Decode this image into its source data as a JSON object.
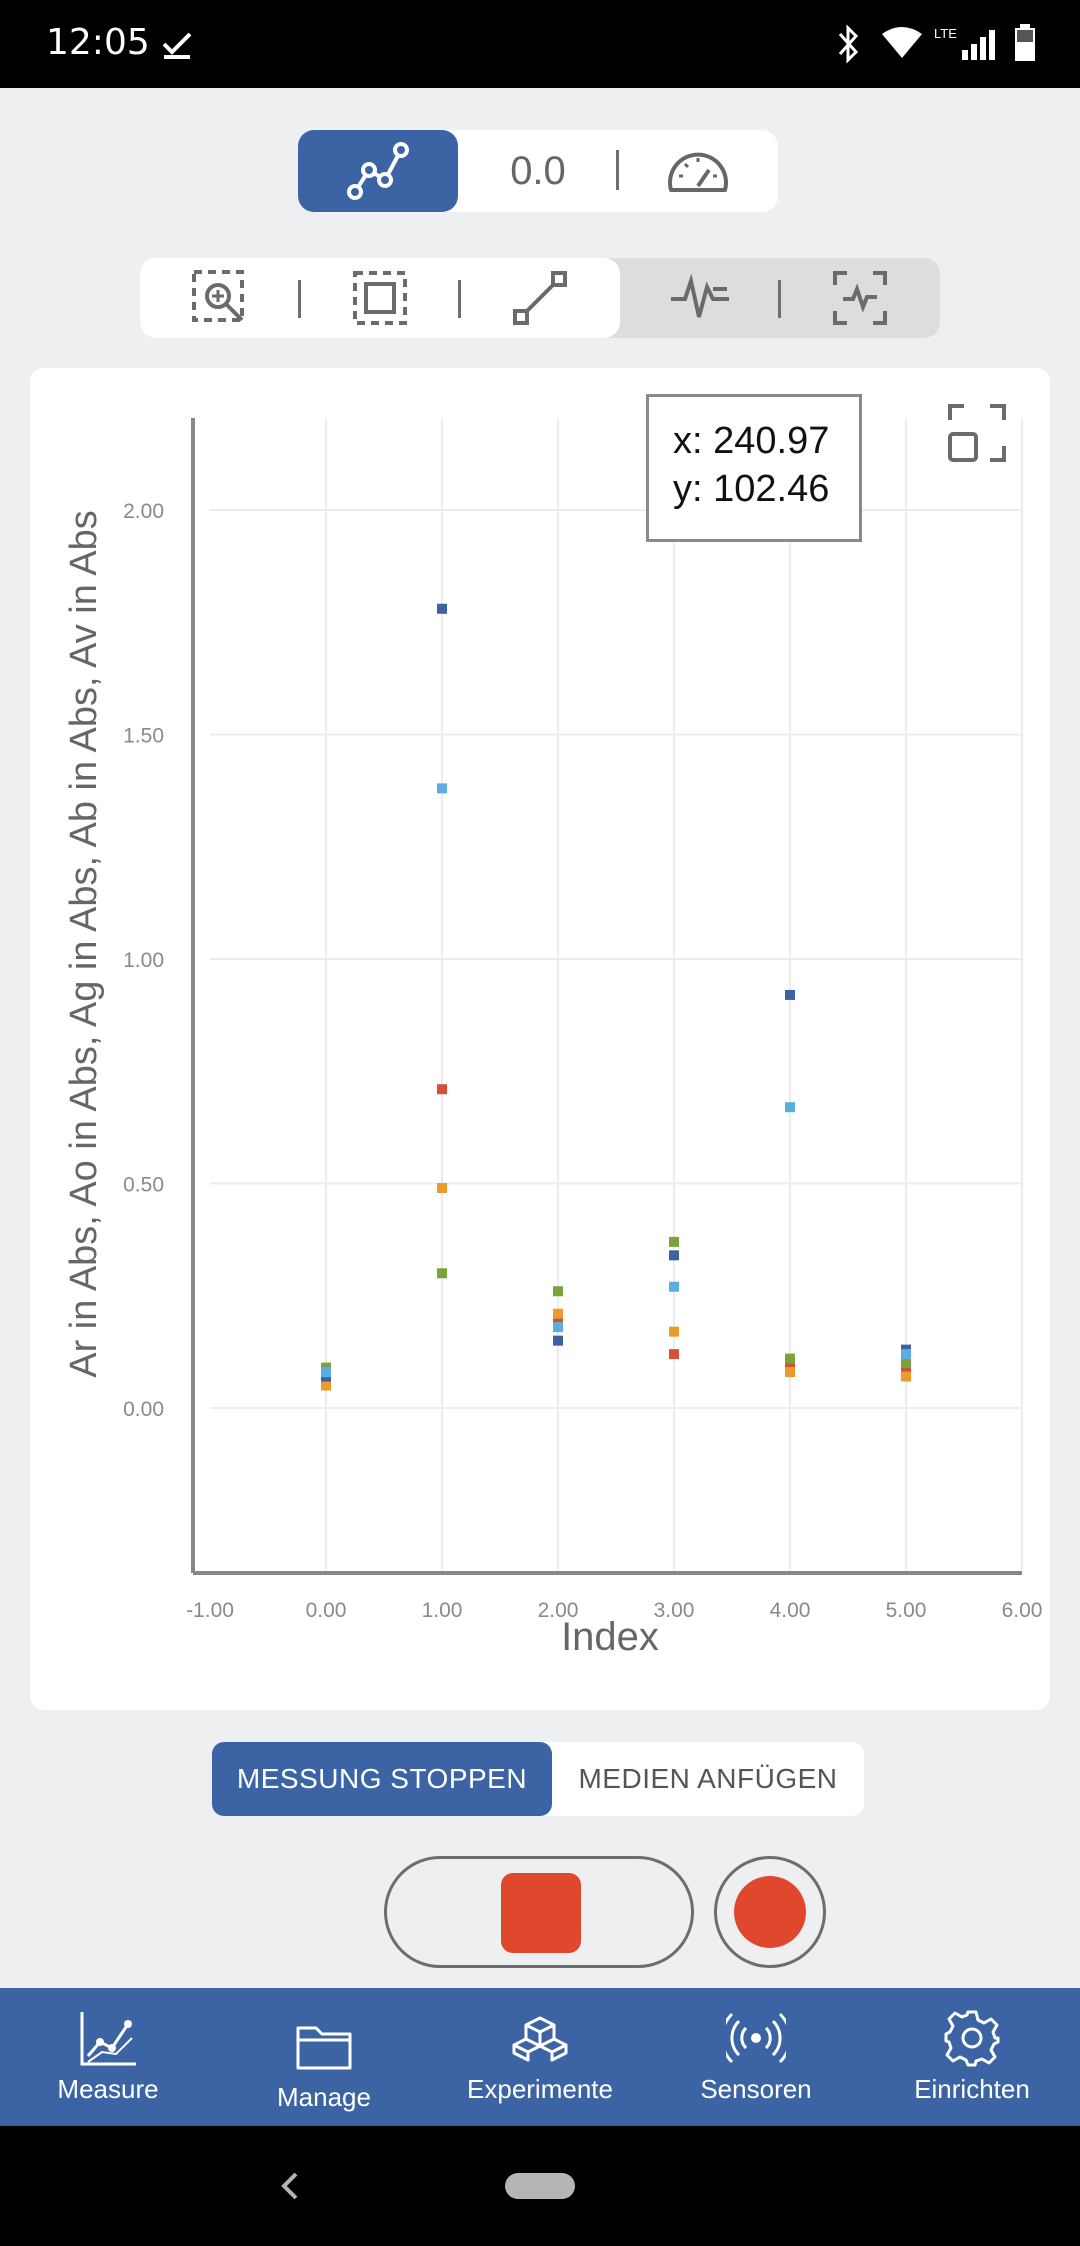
{
  "status_bar": {
    "time": "12:05",
    "network": "LTE"
  },
  "mode_control": {
    "value": "0.0"
  },
  "tooltip": {
    "x_line": "x: 240.97",
    "y_line": "y: 102.46"
  },
  "chart_data": {
    "type": "scatter",
    "xlabel": "Index",
    "ylabel": "Ar in Abs, Ao in Abs, Ag in Abs, Ab in Abs, Av in Abs",
    "xlim": [
      -1,
      6
    ],
    "ylim": [
      -0.36,
      2.2
    ],
    "x_ticks": [
      "-1.00",
      "0.00",
      "1.00",
      "2.00",
      "3.00",
      "4.00",
      "5.00",
      "6.00"
    ],
    "y_ticks": [
      "0.00",
      "0.50",
      "1.00",
      "1.50",
      "2.00"
    ],
    "grid": true,
    "legend": "none",
    "series": [
      {
        "color": "#d5503a",
        "x": [
          0,
          1,
          2,
          3,
          4,
          5
        ],
        "y": [
          0.06,
          0.71,
          0.2,
          0.12,
          0.09,
          0.08
        ]
      },
      {
        "color": "#eb9a2e",
        "x": [
          0,
          1,
          2,
          3,
          4,
          5
        ],
        "y": [
          0.05,
          0.49,
          0.21,
          0.17,
          0.08,
          0.07
        ]
      },
      {
        "color": "#7aa33a",
        "x": [
          0,
          1,
          2,
          3,
          4,
          5
        ],
        "y": [
          0.09,
          0.3,
          0.26,
          0.37,
          0.11,
          0.1
        ]
      },
      {
        "color": "#3c62a3",
        "x": [
          0,
          1,
          2,
          3,
          4,
          5
        ],
        "y": [
          0.07,
          1.78,
          0.15,
          0.34,
          0.92,
          0.13
        ]
      },
      {
        "color": "#5aaee0",
        "x": [
          0,
          1,
          2,
          3,
          4,
          5
        ],
        "y": [
          0.08,
          1.38,
          0.18,
          0.27,
          0.67,
          0.12
        ]
      }
    ]
  },
  "actions": {
    "stop_label": "MESSUNG STOPPEN",
    "media_label": "MEDIEN ANFÜGEN"
  },
  "nav": {
    "items": [
      {
        "label": "Measure",
        "icon": "chart-line-icon"
      },
      {
        "label": "Manage",
        "icon": "folder-icon"
      },
      {
        "label": "Experimente",
        "icon": "cubes-icon"
      },
      {
        "label": "Sensoren",
        "icon": "broadcast-icon"
      },
      {
        "label": "Einrichten",
        "icon": "gear-icon"
      }
    ]
  },
  "colors": {
    "accent": "#3c64a4",
    "record": "#e0482d"
  }
}
